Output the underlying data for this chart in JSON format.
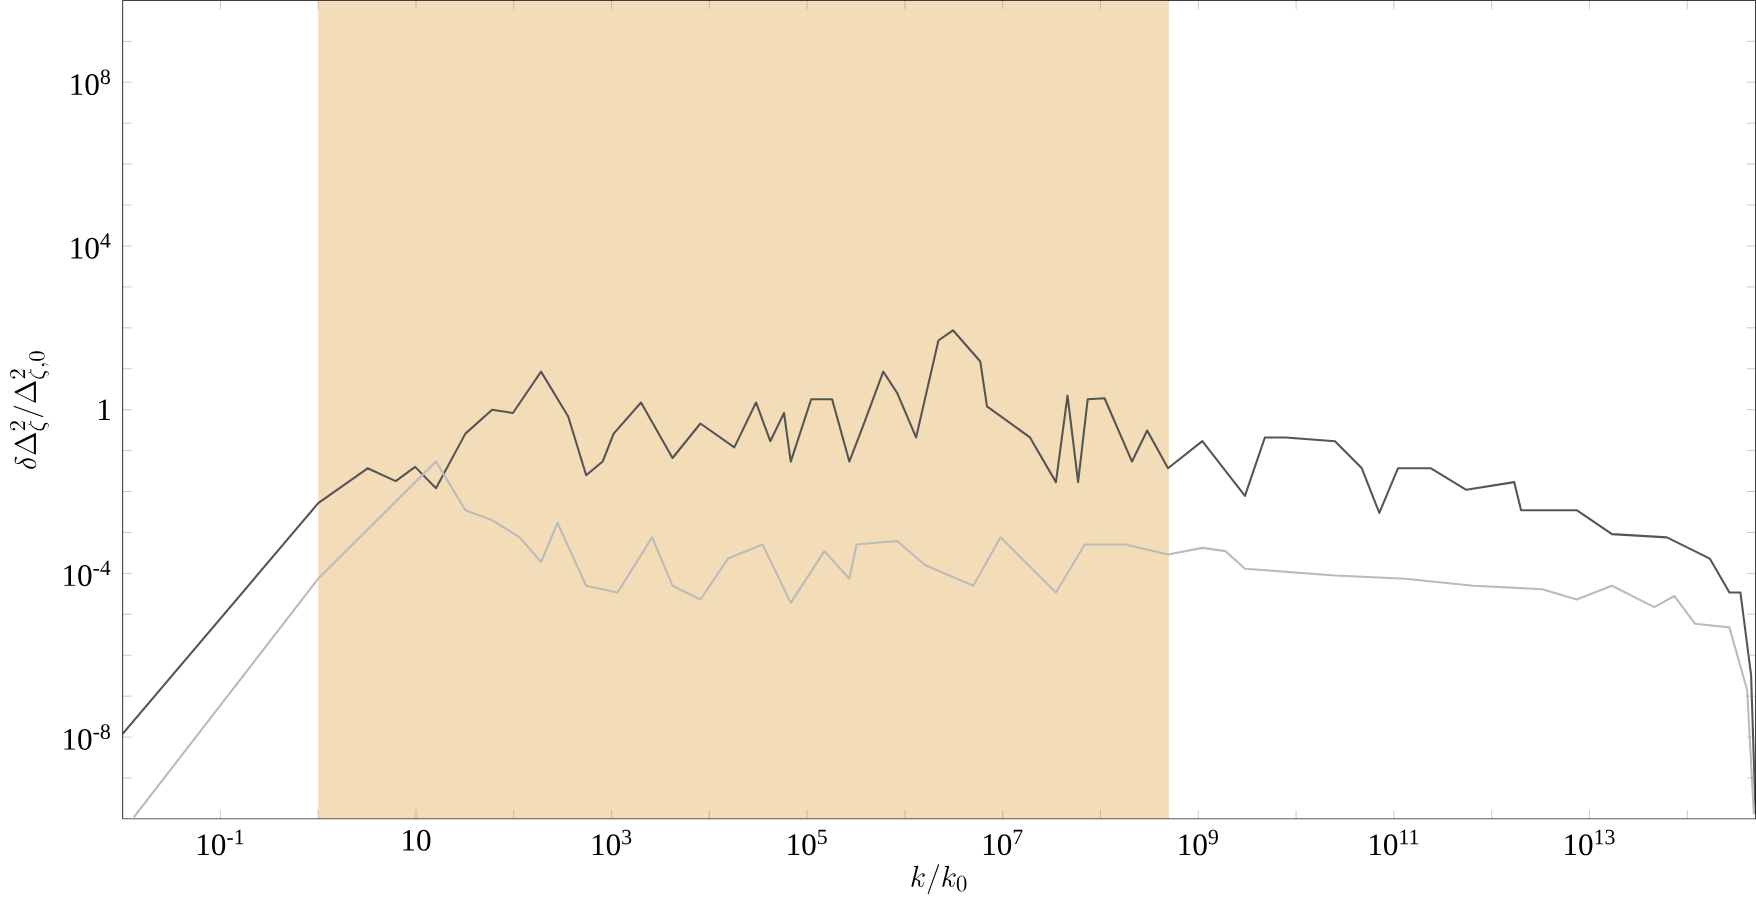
{
  "chart_data": {
    "type": "line",
    "xlabel": "k/k_0",
    "ylabel": "\\delta\\Delta_\\zeta^2/\\Delta_{\\zeta,0}^2",
    "log": "xy",
    "xlim": [
      0.01,
      500000000000000.0
    ],
    "ylim": [
      1e-10,
      10000000000.0
    ],
    "xticks": [
      {
        "value": 0.1,
        "label": "10$^{-1}$"
      },
      {
        "value": 1,
        "label": null
      },
      10,
      {
        "value": 100,
        "label": null
      },
      {
        "value": 1000.0,
        "label": "10$^{3}$"
      },
      {
        "value": 10000.0,
        "label": null
      },
      {
        "value": 100000.0,
        "label": "10$^{5}$"
      },
      {
        "value": 1000000.0,
        "label": null
      },
      {
        "value": 10000000.0,
        "label": "10$^{7}$"
      },
      {
        "value": 100000000.0,
        "label": null
      },
      {
        "value": 1000000000.0,
        "label": "10$^{9}$"
      },
      {
        "value": 10000000000.0,
        "label": null
      },
      {
        "value": 100000000000.0,
        "label": "10$^{11}$"
      },
      {
        "value": 1000000000000.0,
        "label": null
      },
      {
        "value": 10000000000000.0,
        "label": "10$^{13}$"
      },
      {
        "value": 100000000000000.0,
        "label": null
      }
    ],
    "yticks": [
      {
        "value": 1e-09,
        "label": null
      },
      {
        "value": 1e-08,
        "label": "10$^{-8}$"
      },
      {
        "value": 1e-07,
        "label": null
      },
      {
        "value": 1e-06,
        "label": null
      },
      {
        "value": 1e-05,
        "label": null
      },
      {
        "value": 0.0001,
        "label": "10$^{-4}$"
      },
      {
        "value": 0.001,
        "label": null
      },
      {
        "value": 0.01,
        "label": null
      },
      {
        "value": 0.1,
        "label": null
      },
      1,
      {
        "value": 10,
        "label": null
      },
      {
        "value": 100,
        "label": null
      },
      {
        "value": 1000.0,
        "label": null
      },
      {
        "value": 10000.0,
        "label": "10$^{4}$"
      },
      {
        "value": 100000.0,
        "label": null
      },
      {
        "value": 1000000.0,
        "label": null
      },
      {
        "value": 10000000.0,
        "label": null
      },
      {
        "value": 100000000.0,
        "label": "10$^{8}$"
      },
      {
        "value": 1000000000.0,
        "label": null
      }
    ],
    "bands": [
      {
        "axis": "x",
        "from": 1,
        "to": 500000000.0,
        "color": "#f3ddb8"
      }
    ],
    "series": [
      {
        "color": "#555555",
        "x": [
          0.01,
          1,
          3.2,
          6.2,
          9.8,
          16,
          32,
          60,
          98,
          190,
          360,
          550,
          810,
          1050,
          2000,
          4200,
          8100,
          18000,
          30000,
          42000,
          58000,
          68000,
          110000,
          180000,
          270000,
          370000.0,
          600000.0,
          830000.0,
          1300000.0,
          2200000.0,
          3100000.0,
          5900000.0,
          6900000.0,
          19000000.0,
          35000000.0,
          46000000.0,
          59000000.0,
          74000000.0,
          110000000.0,
          210000000.0,
          300000000.0,
          490000000.0,
          1100000000.0,
          3000000000.0,
          4800000000.0,
          7800000000.0,
          25000000000.0,
          47000000000.0,
          71000000000.0,
          110000000000.0,
          240000000000.0,
          550000000000.0,
          1700000000000.0,
          2000000000000.0,
          7400000000000.0,
          17000000000000.0,
          62000000000000.0,
          170000000000000.0,
          270000000000000.0,
          350000000000000.0,
          450000000000000.0,
          500000000000000.0
        ],
        "values": [
          1.2e-08,
          0.0052,
          0.037,
          0.018,
          0.04,
          0.012,
          0.26,
          1,
          0.83,
          8.5,
          0.68,
          0.025,
          0.054,
          0.26,
          1.5,
          0.066,
          0.46,
          0.12,
          1.5,
          0.17,
          0.83,
          0.054,
          1.8,
          1.8,
          0.054,
          0.38,
          8.5,
          2.6,
          0.21,
          49,
          87,
          15,
          1.2,
          0.21,
          0.017,
          2.2,
          0.017,
          1.8,
          1.9,
          0.054,
          0.31,
          0.037,
          0.17,
          0.0078,
          0.21,
          0.21,
          0.17,
          0.037,
          0.003,
          0.037,
          0.037,
          0.011,
          0.017,
          0.0035,
          0.0035,
          0.00091,
          0.00076,
          0.00023,
          3.4e-05,
          3.4e-05,
          3.2e-07,
          1.3e-10
        ]
      },
      {
        "color": "#bbbbbb",
        "x": [
          0.013,
          1,
          16,
          32,
          60,
          115,
          190,
          280,
          550,
          1150,
          2600,
          4200,
          8100,
          15500,
          35000,
          68000,
          150000,
          270000,
          320000.0,
          830000.0,
          1600000.0,
          5000000.0,
          9500000.0,
          35000000.0,
          69000000.0,
          180000000.0,
          490000000.0,
          1100000000.0,
          1900000000.0,
          3000000000.0,
          25000000000.0,
          130000000000.0,
          650000000000.0,
          3300000000000.0,
          7400000000000.0,
          17000000000000.0,
          46000000000000.0,
          74000000000000.0,
          120000000000000.0,
          270000000000000.0,
          410000000000000.0,
          480000000000000.0
        ],
        "values": [
          1.1e-10,
          7.4e-05,
          0.054,
          0.0035,
          0.002,
          0.00076,
          0.00019,
          0.0017,
          5e-05,
          3.4e-05,
          0.00076,
          5e-05,
          2.3e-05,
          0.00023,
          0.00051,
          1.9e-05,
          0.00035,
          7.4e-05,
          0.00051,
          0.00062,
          0.00016,
          5e-05,
          0.00076,
          3.4e-05,
          0.00051,
          0.00051,
          0.00029,
          0.00042,
          0.00035,
          0.00013,
          8.9e-05,
          7.4e-05,
          5e-05,
          4.1e-05,
          2.3e-05,
          5e-05,
          1.5e-05,
          2.8e-05,
          5.9e-06,
          4.8e-06,
          1.4e-07,
          1.3e-10
        ]
      }
    ]
  }
}
